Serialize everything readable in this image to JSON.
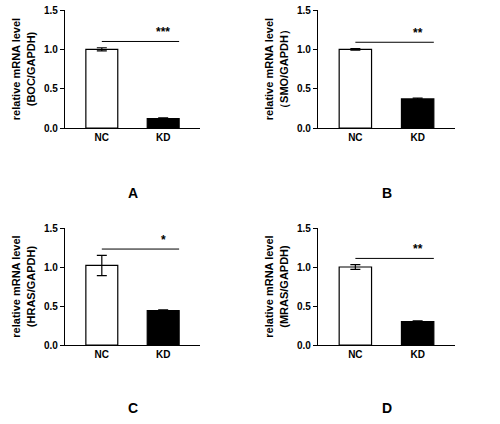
{
  "chart_data": [
    {
      "type": "bar",
      "title": "A",
      "ylabel": "relative mRNA level\n(BOC/GAPDH)",
      "categories": [
        "NC",
        "KD"
      ],
      "values": [
        1.0,
        0.12
      ],
      "errors": [
        0.02,
        0.01
      ],
      "colors": [
        "#ffffff",
        "#000000"
      ],
      "ylim": [
        0,
        1.5
      ],
      "yticks": [
        {
          "value": 0,
          "label": "0.0"
        },
        {
          "value": 0.5,
          "label": "0.5"
        },
        {
          "value": 1,
          "label": "1.0"
        },
        {
          "value": 1.5,
          "label": "1.5"
        }
      ],
      "grid": false,
      "annotations": [
        {
          "text": "***"
        }
      ]
    },
    {
      "type": "bar",
      "title": "B",
      "ylabel": "relative mRNA level\n（SMO/GAPDH）",
      "categories": [
        "NC",
        "KD"
      ],
      "values": [
        1.0,
        0.37
      ],
      "errors": [
        0.01,
        0.01
      ],
      "colors": [
        "#ffffff",
        "#000000"
      ],
      "ylim": [
        0,
        1.5
      ],
      "yticks": [
        {
          "value": 0,
          "label": "0.0"
        },
        {
          "value": 0.5,
          "label": "0.5"
        },
        {
          "value": 1,
          "label": "1.0"
        },
        {
          "value": 1.5,
          "label": "1.5"
        }
      ],
      "grid": false,
      "annotations": [
        {
          "text": "**"
        }
      ]
    },
    {
      "type": "bar",
      "title": "C",
      "ylabel": "relative mRNA level\n(HRAS/GAPDH)",
      "categories": [
        "NC",
        "KD"
      ],
      "values": [
        1.02,
        0.44
      ],
      "errors": [
        0.13,
        0.01
      ],
      "colors": [
        "#ffffff",
        "#000000"
      ],
      "ylim": [
        0,
        1.5
      ],
      "yticks": [
        {
          "value": 0,
          "label": "0.0"
        },
        {
          "value": 0.5,
          "label": "0.5"
        },
        {
          "value": 1,
          "label": "1.0"
        },
        {
          "value": 1.5,
          "label": "1.5"
        }
      ],
      "grid": false,
      "annotations": [
        {
          "text": "*"
        }
      ]
    },
    {
      "type": "bar",
      "title": "D",
      "ylabel": "relative mRNA level\n(MRAS/GAPDH)",
      "categories": [
        "NC",
        "KD"
      ],
      "values": [
        1.0,
        0.3
      ],
      "errors": [
        0.03,
        0.01
      ],
      "colors": [
        "#ffffff",
        "#000000"
      ],
      "ylim": [
        0,
        1.5
      ],
      "yticks": [
        {
          "value": 0,
          "label": "0.0"
        },
        {
          "value": 0.5,
          "label": "0.5"
        },
        {
          "value": 1,
          "label": "1.0"
        },
        {
          "value": 1.5,
          "label": "1.5"
        }
      ],
      "grid": false,
      "annotations": [
        {
          "text": "**"
        }
      ]
    }
  ]
}
